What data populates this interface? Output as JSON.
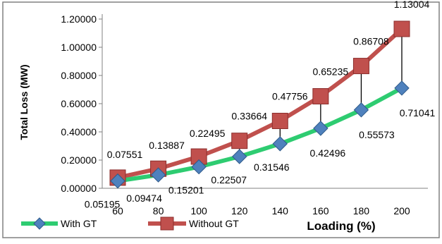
{
  "chart_data": {
    "type": "line",
    "title": "",
    "xlabel": "Loading (%)",
    "ylabel": "Total Loss (MW)",
    "categories": [
      "60",
      "80",
      "100",
      "120",
      "140",
      "160",
      "180",
      "200"
    ],
    "ylim": [
      0,
      1.2
    ],
    "y_ticks": [
      "0.00000",
      "0.20000",
      "0.40000",
      "0.60000",
      "0.80000",
      "1.00000",
      "1.20000"
    ],
    "grid": false,
    "legend_position": "bottom-left",
    "series": [
      {
        "name": "With GT",
        "values": [
          0.05195,
          0.09474,
          0.15201,
          0.22507,
          0.31546,
          0.42496,
          0.55573,
          0.71041
        ],
        "labels": [
          "0.05195",
          "0.09474",
          "0.15201",
          "0.22507",
          "0.31546",
          "0.42496",
          "0.55573",
          "0.71041"
        ],
        "line_color": "#2ECC71",
        "marker_color": "#4F81BD",
        "marker": "diamond"
      },
      {
        "name": "Without GT",
        "values": [
          0.07551,
          0.13887,
          0.22495,
          0.33664,
          0.47756,
          0.65235,
          0.86708,
          1.13004
        ],
        "labels": [
          "0.07551",
          "0.13887",
          "0.22495",
          "0.33664",
          "0.47756",
          "0.65235",
          "0.86708",
          "1.13004"
        ],
        "line_color": "#C0504D",
        "marker_color": "#C0504D",
        "marker": "square"
      }
    ],
    "drop_lines": true
  }
}
